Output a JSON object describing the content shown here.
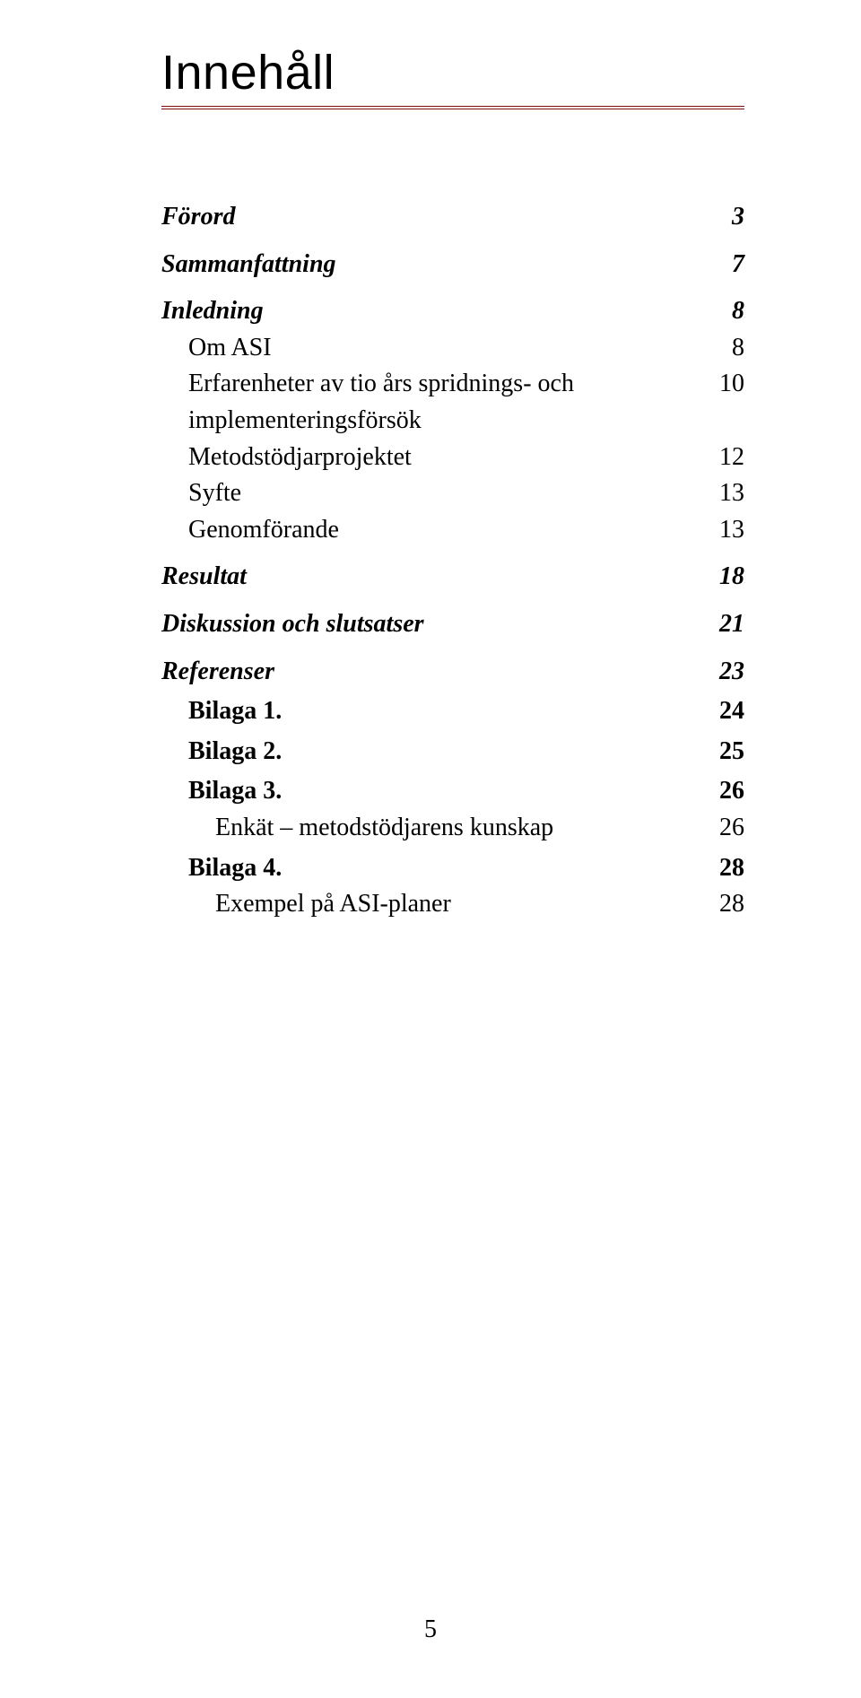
{
  "title": "Innehåll",
  "rule_color": "#7a0d0d",
  "text_color": "#000000",
  "background_color": "#ffffff",
  "page_number": "5",
  "toc": [
    {
      "level": 1,
      "label": "Förord",
      "page": "3"
    },
    {
      "level": 1,
      "label": "Sammanfattning",
      "page": "7"
    },
    {
      "level": 1,
      "label": "Inledning",
      "page": "8"
    },
    {
      "level": 2,
      "label": "Om ASI",
      "page": "8"
    },
    {
      "level": 2,
      "label": "Erfarenheter av tio års spridnings- och implementeringsförsök",
      "page": "10"
    },
    {
      "level": 2,
      "label": "Metodstödjarprojektet",
      "page": "12"
    },
    {
      "level": 2,
      "label": "Syfte",
      "page": "13"
    },
    {
      "level": 2,
      "label": "Genomförande",
      "page": "13"
    },
    {
      "level": 1,
      "label": "Resultat",
      "page": "18"
    },
    {
      "level": 1,
      "label": "Diskussion och slutsatser",
      "page": "21"
    },
    {
      "level": 1,
      "label": "Referenser",
      "page": "23"
    },
    {
      "level": "2b",
      "label": "Bilaga 1.",
      "page": "24"
    },
    {
      "level": "2b",
      "label": "Bilaga 2.",
      "page": "25"
    },
    {
      "level": "2b",
      "label": "Bilaga 3.",
      "page": "26"
    },
    {
      "level": 3,
      "label": "Enkät – metodstödjarens kunskap",
      "page": "26"
    },
    {
      "level": "2b",
      "label": "Bilaga 4.",
      "page": "28"
    },
    {
      "level": 3,
      "label": "Exempel på ASI-planer",
      "page": "28"
    }
  ]
}
